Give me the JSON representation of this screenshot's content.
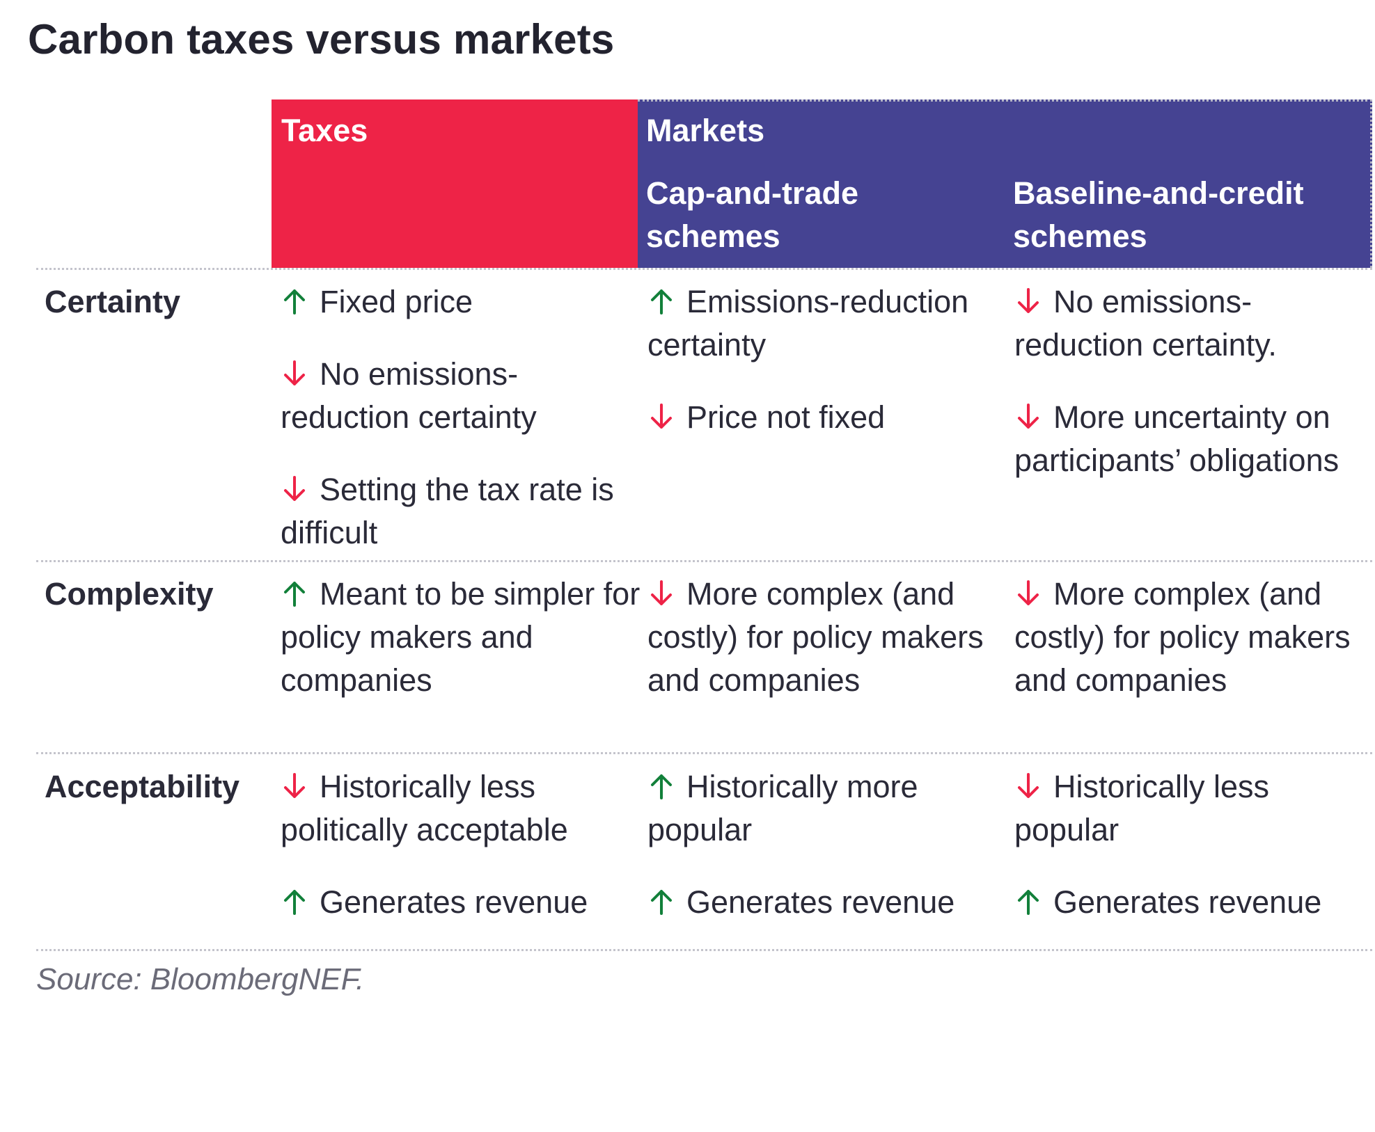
{
  "title": "Carbon taxes versus markets",
  "colors": {
    "taxes": "#ee2347",
    "markets": "#454392",
    "up_arrow": "#12803a",
    "down_arrow": "#ee2347"
  },
  "headers": {
    "taxes": "Taxes",
    "markets": "Markets",
    "cap_and_trade": "Cap-and-trade schemes",
    "baseline_and_credit": "Baseline-and-credit schemes"
  },
  "rows": [
    {
      "label": "Certainty",
      "taxes": [
        {
          "dir": "up",
          "text": "Fixed price"
        },
        {
          "dir": "down",
          "text": "No emissions-reduction certainty"
        },
        {
          "dir": "down",
          "text": "Setting the tax rate is difficult"
        }
      ],
      "cap_and_trade": [
        {
          "dir": "up",
          "text": "Emissions-reduction certainty"
        },
        {
          "dir": "down",
          "text": "Price not fixed"
        }
      ],
      "baseline_and_credit": [
        {
          "dir": "down",
          "text": "No emissions-reduction certainty."
        },
        {
          "dir": "down",
          "text": "More uncertainty on participants’ obligations"
        }
      ]
    },
    {
      "label": "Complexity",
      "taxes": [
        {
          "dir": "up",
          "text": "Meant to be simpler for policy makers and companies"
        }
      ],
      "cap_and_trade": [
        {
          "dir": "down",
          "text": "More complex (and costly) for policy makers and companies"
        }
      ],
      "baseline_and_credit": [
        {
          "dir": "down",
          "text": "More complex (and costly) for policy makers and companies"
        }
      ]
    },
    {
      "label": "Acceptability",
      "taxes": [
        {
          "dir": "down",
          "text": "Historically less politically acceptable"
        },
        {
          "dir": "up",
          "text": "Generates revenue"
        }
      ],
      "cap_and_trade": [
        {
          "dir": "up",
          "text": "Historically more popular"
        },
        {
          "dir": "up",
          "text": "Generates revenue"
        }
      ],
      "baseline_and_credit": [
        {
          "dir": "down",
          "text": "Historically less popular"
        },
        {
          "dir": "up",
          "text": "Generates revenue"
        }
      ]
    }
  ],
  "source": "Source: BloombergNEF."
}
